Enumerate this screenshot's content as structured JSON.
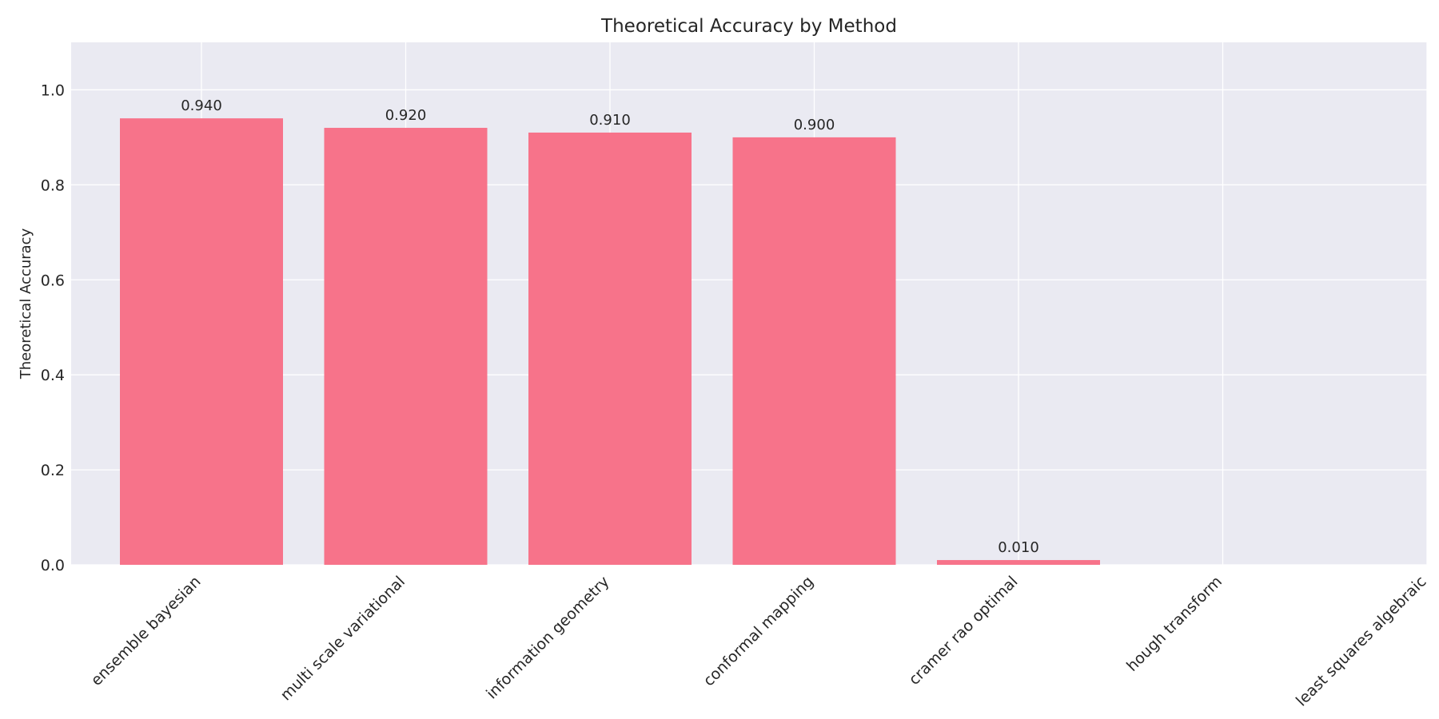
{
  "chart_data": {
    "type": "bar",
    "title": "Theoretical Accuracy by Method",
    "xlabel": "",
    "ylabel": "Theoretical Accuracy",
    "categories": [
      "ensemble bayesian",
      "multi scale variational",
      "information geometry",
      "conformal mapping",
      "cramer rao optimal",
      "hough transform",
      "least squares algebraic"
    ],
    "values": [
      0.94,
      0.92,
      0.91,
      0.9,
      0.01,
      0.0,
      0.0
    ],
    "data_labels": [
      "0.940",
      "0.920",
      "0.910",
      "0.900",
      "0.010",
      "",
      ""
    ],
    "ylim": [
      0,
      1.1
    ],
    "yticks": [
      0.0,
      0.2,
      0.4,
      0.6,
      0.8,
      1.0
    ],
    "ytick_labels": [
      "0.0",
      "0.2",
      "0.4",
      "0.6",
      "0.8",
      "1.0"
    ],
    "grid": true,
    "colors": {
      "bar": "#f7738a",
      "plot_background": "#eaeaf2",
      "grid": "#ffffff",
      "text": "#262626"
    }
  }
}
